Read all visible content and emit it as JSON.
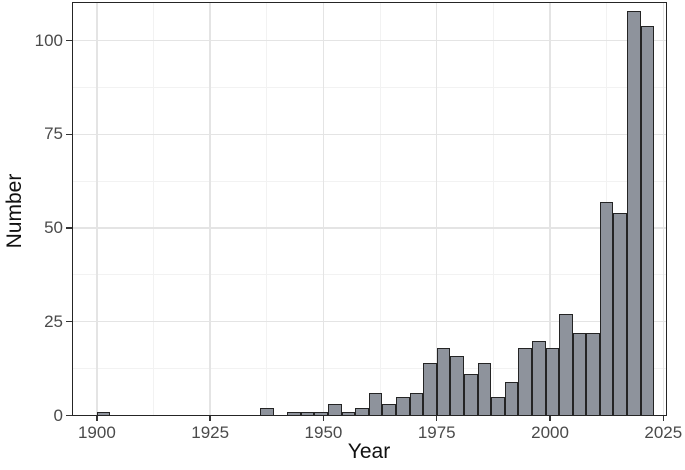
{
  "chart_data": {
    "type": "bar",
    "subtype": "histogram",
    "title": "",
    "xlabel": "Year",
    "ylabel": "Number",
    "bin_width_years": 3,
    "bins": [
      {
        "start": 1900,
        "count": 1
      },
      {
        "start": 1936,
        "count": 2
      },
      {
        "start": 1942,
        "count": 1
      },
      {
        "start": 1945,
        "count": 1
      },
      {
        "start": 1948,
        "count": 1
      },
      {
        "start": 1951,
        "count": 3
      },
      {
        "start": 1954,
        "count": 1
      },
      {
        "start": 1957,
        "count": 2
      },
      {
        "start": 1960,
        "count": 6
      },
      {
        "start": 1963,
        "count": 3
      },
      {
        "start": 1966,
        "count": 5
      },
      {
        "start": 1969,
        "count": 6
      },
      {
        "start": 1972,
        "count": 14
      },
      {
        "start": 1975,
        "count": 18
      },
      {
        "start": 1978,
        "count": 16
      },
      {
        "start": 1981,
        "count": 11
      },
      {
        "start": 1984,
        "count": 14
      },
      {
        "start": 1987,
        "count": 5
      },
      {
        "start": 1990,
        "count": 9
      },
      {
        "start": 1993,
        "count": 18
      },
      {
        "start": 1996,
        "count": 20
      },
      {
        "start": 1999,
        "count": 18
      },
      {
        "start": 2002,
        "count": 27
      },
      {
        "start": 2005,
        "count": 22
      },
      {
        "start": 2008,
        "count": 22
      },
      {
        "start": 2011,
        "count": 57
      },
      {
        "start": 2014,
        "count": 54
      },
      {
        "start": 2017,
        "count": 108
      },
      {
        "start": 2020,
        "count": 104
      }
    ],
    "x_ticks": [
      1900,
      1925,
      1950,
      1975,
      2000,
      2025
    ],
    "y_ticks": [
      0,
      25,
      50,
      75,
      100
    ],
    "x_minor_gridlines": [
      1912.5,
      1937.5,
      1962.5,
      1987.5,
      2012.5
    ],
    "y_minor_gridlines": [
      12.5,
      37.5,
      62.5,
      87.5
    ],
    "xlim": [
      1894.4,
      2025.7
    ],
    "ylim": [
      0,
      110.4
    ],
    "grid": "major-and-minor",
    "legend": "none",
    "colors": {
      "bar_fill": "#8e939c",
      "bar_stroke": "#242424",
      "grid_major": "#e4e4e4",
      "grid_minor": "#f2f2f2",
      "panel_border": "#252525",
      "tick_mark": "#333333",
      "tick_label": "#4a4a4a",
      "axis_title": "#111111",
      "background": "#ffffff"
    }
  }
}
